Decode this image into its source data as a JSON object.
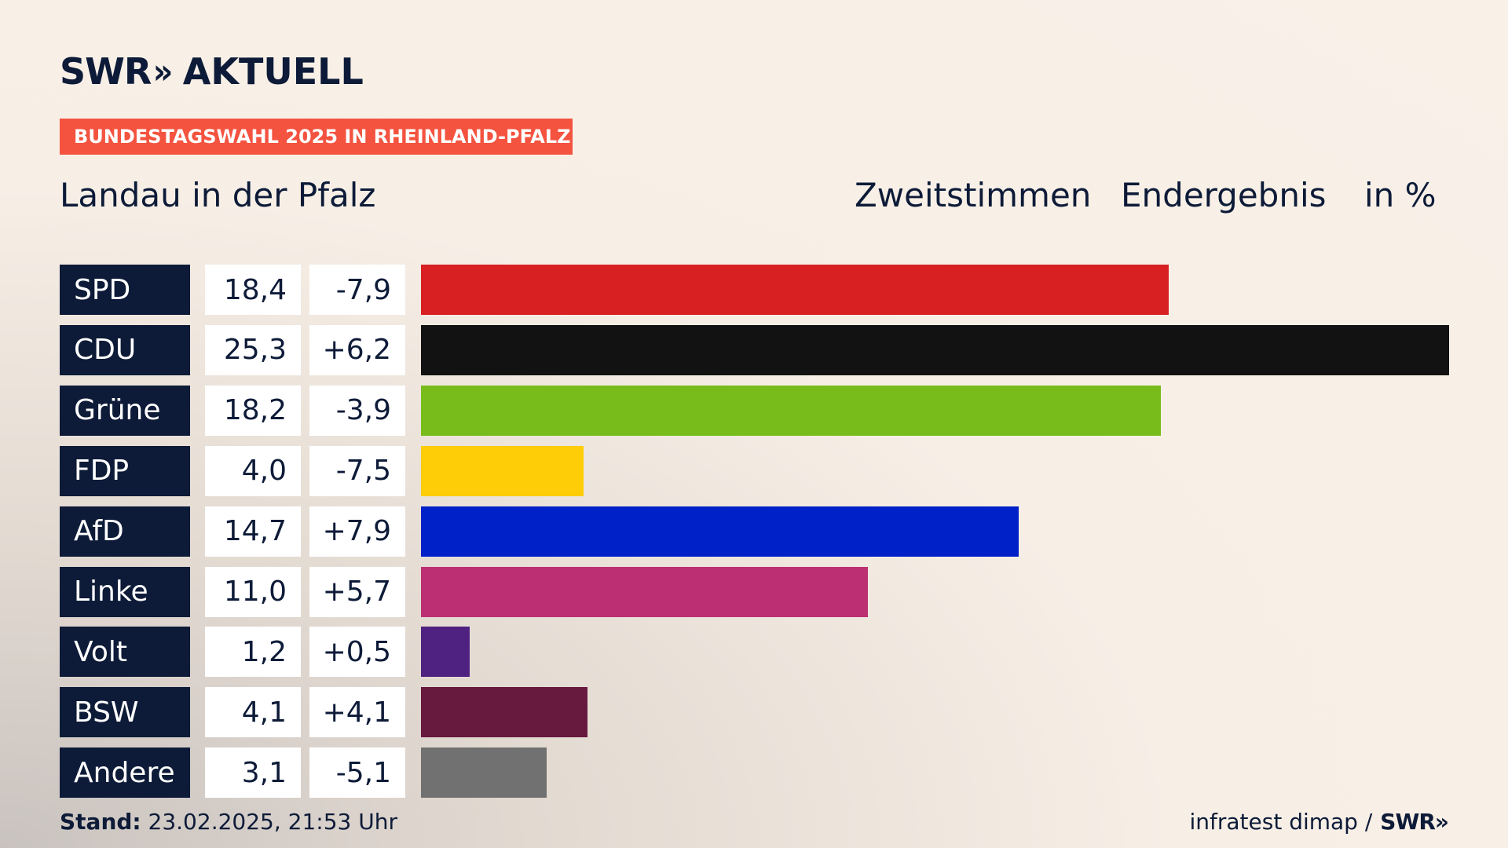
{
  "brand": {
    "logo_main": "SWR",
    "logo_chevron": "»",
    "logo_sub": "AKTUELL"
  },
  "banner": "BUNDESTAGSWAHL 2025 IN RHEINLAND-PFALZ",
  "header": {
    "region": "Landau in der Pfalz",
    "vote_type": "Zweitstimmen",
    "status": "Endergebnis",
    "unit": "in %"
  },
  "chart_data": {
    "type": "bar",
    "orientation": "horizontal",
    "categories": [
      "SPD",
      "CDU",
      "Grüne",
      "FDP",
      "AfD",
      "Linke",
      "Volt",
      "BSW",
      "Andere"
    ],
    "series": [
      {
        "values": [
          18.4,
          25.3,
          18.2,
          4.0,
          14.7,
          11.0,
          1.2,
          4.1,
          3.1
        ]
      }
    ],
    "value_labels": [
      "18,4",
      "25,3",
      "18,2",
      "4,0",
      "14,7",
      "11,0",
      "1,2",
      "4,1",
      "3,1"
    ],
    "diff_labels": [
      "-7,9",
      "+6,2",
      "-3,9",
      "-7,5",
      "+7,9",
      "+5,7",
      "+0,5",
      "+4,1",
      "-5,1"
    ],
    "colors": [
      "#d81f21",
      "#121212",
      "#78bc1b",
      "#ffcc08",
      "#0021c7",
      "#bc3073",
      "#4f2180",
      "#67193e",
      "#717171"
    ],
    "xlim": [
      0,
      25.3
    ]
  },
  "footer": {
    "stand_label": "Stand:",
    "stand_value": "23.02.2025, 21:53 Uhr",
    "source": "infratest dimap /",
    "source_logo": "SWR»"
  }
}
